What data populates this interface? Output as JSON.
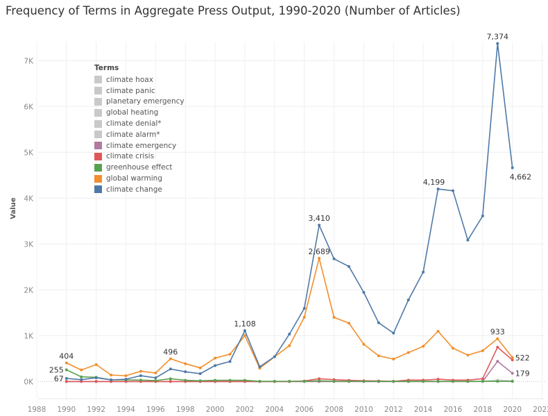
{
  "chart_data": {
    "type": "line",
    "title": "Frequency of Terms in Aggregate Press Output, 1990-2020 (Number of Articles)",
    "xlabel": "",
    "ylabel": "Value",
    "xlim": [
      1988,
      2022
    ],
    "ylim": [
      0,
      7000
    ],
    "x_ticks": [
      "1988",
      "1990",
      "1992",
      "1994",
      "1996",
      "1998",
      "2000",
      "2002",
      "2004",
      "2006",
      "2008",
      "2010",
      "2012",
      "2014",
      "2016",
      "2018",
      "2020",
      "2022"
    ],
    "y_ticks": [
      {
        "v": 0,
        "t": "0K"
      },
      {
        "v": 1000,
        "t": "1K"
      },
      {
        "v": 2000,
        "t": "2K"
      },
      {
        "v": 3000,
        "t": "3K"
      },
      {
        "v": 4000,
        "t": "4K"
      },
      {
        "v": 5000,
        "t": "5K"
      },
      {
        "v": 6000,
        "t": "6K"
      },
      {
        "v": 7000,
        "t": "7K"
      }
    ],
    "grid": true,
    "legend_title": "Terms",
    "legend_position": "top-left",
    "x": [
      1990,
      1991,
      1992,
      1993,
      1994,
      1995,
      1996,
      1997,
      1998,
      1999,
      2000,
      2001,
      2002,
      2003,
      2004,
      2005,
      2006,
      2007,
      2008,
      2009,
      2010,
      2011,
      2012,
      2013,
      2014,
      2015,
      2016,
      2017,
      2018,
      2019,
      2020
    ],
    "series": [
      {
        "name": "climate hoax",
        "color": "#c9c9c9",
        "values": [
          0,
          0,
          0,
          0,
          0,
          0,
          0,
          0,
          0,
          0,
          0,
          0,
          0,
          0,
          0,
          0,
          0,
          0,
          0,
          0,
          0,
          0,
          0,
          0,
          0,
          0,
          0,
          0,
          0,
          5,
          3
        ]
      },
      {
        "name": "climate panic",
        "color": "#c9c9c9",
        "values": [
          0,
          0,
          0,
          0,
          0,
          0,
          0,
          0,
          0,
          0,
          0,
          0,
          0,
          0,
          0,
          0,
          0,
          0,
          0,
          0,
          0,
          0,
          0,
          0,
          0,
          0,
          0,
          0,
          0,
          6,
          4
        ]
      },
      {
        "name": "planetary emergency",
        "color": "#c9c9c9",
        "values": [
          0,
          0,
          0,
          0,
          0,
          0,
          0,
          0,
          0,
          0,
          0,
          0,
          0,
          0,
          0,
          0,
          0,
          0,
          0,
          0,
          0,
          0,
          0,
          0,
          0,
          0,
          0,
          0,
          2,
          10,
          6
        ]
      },
      {
        "name": "global heating",
        "color": "#c9c9c9",
        "values": [
          0,
          0,
          0,
          0,
          0,
          0,
          0,
          0,
          0,
          0,
          0,
          0,
          0,
          0,
          0,
          0,
          0,
          0,
          0,
          0,
          0,
          0,
          0,
          0,
          0,
          0,
          0,
          0,
          3,
          30,
          15
        ]
      },
      {
        "name": "climate denial*",
        "color": "#c9c9c9",
        "values": [
          0,
          0,
          0,
          0,
          0,
          0,
          0,
          0,
          0,
          0,
          0,
          0,
          0,
          0,
          0,
          0,
          2,
          5,
          5,
          5,
          5,
          4,
          3,
          4,
          4,
          6,
          5,
          5,
          5,
          10,
          8
        ]
      },
      {
        "name": "climate alarm*",
        "color": "#c9c9c9",
        "values": [
          0,
          0,
          0,
          0,
          0,
          0,
          0,
          0,
          0,
          0,
          0,
          0,
          0,
          0,
          0,
          0,
          1,
          2,
          2,
          2,
          1,
          1,
          1,
          1,
          1,
          2,
          2,
          2,
          2,
          4,
          3
        ]
      },
      {
        "name": "climate emergency",
        "color": "#b07aa1",
        "values": [
          0,
          0,
          0,
          0,
          0,
          0,
          0,
          0,
          0,
          0,
          0,
          0,
          0,
          0,
          0,
          0,
          0,
          0,
          0,
          0,
          0,
          0,
          0,
          0,
          0,
          0,
          0,
          0,
          2,
          440,
          179
        ]
      },
      {
        "name": "climate crisis",
        "color": "#e15759",
        "values": [
          0,
          0,
          0,
          0,
          0,
          0,
          0,
          0,
          0,
          0,
          0,
          0,
          0,
          0,
          0,
          0,
          10,
          60,
          40,
          25,
          15,
          10,
          5,
          30,
          30,
          50,
          30,
          30,
          60,
          747,
          470
        ]
      },
      {
        "name": "greenhouse effect",
        "color": "#59a14f",
        "values": [
          255,
          101,
          91,
          36,
          35,
          30,
          20,
          60,
          25,
          15,
          25,
          25,
          25,
          3,
          5,
          5,
          5,
          15,
          5,
          4,
          3,
          3,
          2,
          2,
          2,
          3,
          2,
          2,
          2,
          3,
          2
        ]
      },
      {
        "name": "global warming",
        "color": "#f28e2b",
        "values": [
          404,
          252,
          368,
          141,
          125,
          222,
          186,
          496,
          388,
          297,
          510,
          595,
          1000,
          288,
          540,
          782,
          1403,
          2689,
          1398,
          1272,
          812,
          560,
          490,
          631,
          767,
          1095,
          727,
          575,
          671,
          933,
          522
        ]
      },
      {
        "name": "climate change",
        "color": "#4e79a7",
        "values": [
          67,
          40,
          80,
          35,
          50,
          125,
          80,
          273,
          212,
          171,
          348,
          436,
          1108,
          323,
          540,
          1035,
          1595,
          3410,
          2676,
          2509,
          1944,
          1282,
          1055,
          1777,
          2388,
          4199,
          4161,
          3085,
          3611,
          7374,
          4662
        ]
      }
    ],
    "annotations": [
      {
        "series": "global warming",
        "year": 1990,
        "text": "404",
        "pos": "above"
      },
      {
        "series": "greenhouse effect",
        "year": 1990,
        "text": "255",
        "pos": "left"
      },
      {
        "series": "climate change",
        "year": 1990,
        "text": "67",
        "pos": "left"
      },
      {
        "series": "global warming",
        "year": 1997,
        "text": "496",
        "pos": "above"
      },
      {
        "series": "climate change",
        "year": 2002,
        "text": "1,108",
        "pos": "above"
      },
      {
        "series": "climate change",
        "year": 2007,
        "text": "3,410",
        "pos": "above"
      },
      {
        "series": "global warming",
        "year": 2007,
        "text": "2,689",
        "pos": "above"
      },
      {
        "series": "climate change",
        "year": 2015,
        "text": "4,199",
        "pos": "above-left"
      },
      {
        "series": "climate change",
        "year": 2019,
        "text": "7,374",
        "pos": "above"
      },
      {
        "series": "climate change",
        "year": 2020,
        "text": "4,662",
        "pos": "below"
      },
      {
        "series": "global warming",
        "year": 2019,
        "text": "933",
        "pos": "above"
      },
      {
        "series": "global warming",
        "year": 2020,
        "text": "522",
        "pos": "right"
      },
      {
        "series": "climate emergency",
        "year": 2020,
        "text": "179",
        "pos": "right"
      }
    ]
  }
}
